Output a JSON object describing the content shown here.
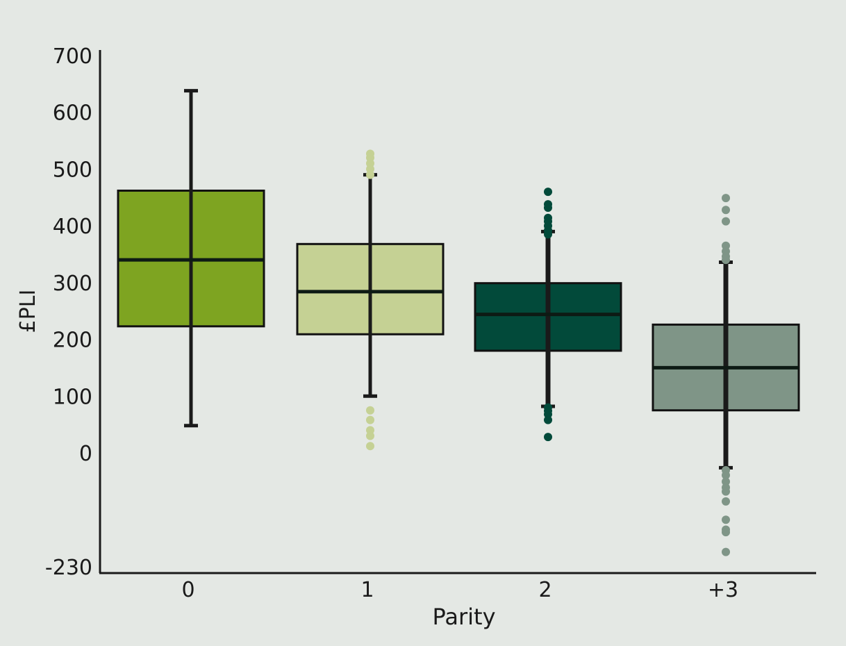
{
  "chart_data": {
    "type": "box",
    "xlabel": "Parity",
    "ylabel": "£PLI",
    "ylim": [
      -230,
      700
    ],
    "yticks": [
      -230,
      0,
      100,
      200,
      300,
      400,
      500,
      600,
      700
    ],
    "grid": false,
    "legend": "none",
    "categories": [
      "0",
      "1",
      "2",
      "+3"
    ],
    "boxes": [
      {
        "category": "0",
        "color": "#7ea421",
        "q1": 223,
        "median": 340,
        "q3": 462,
        "whisker_low": 48,
        "whisker_high": 638,
        "outliers": []
      },
      {
        "category": "1",
        "color": "#c5d194",
        "q1": 209,
        "median": 284,
        "q3": 368,
        "whisker_low": 100,
        "whisker_high": 490,
        "outliers": [
          527,
          520,
          510,
          500,
          490,
          75,
          58,
          40,
          30,
          12
        ]
      },
      {
        "category": "2",
        "color": "#024a3a",
        "q1": 180,
        "median": 244,
        "q3": 299,
        "whisker_low": 82,
        "whisker_high": 390,
        "outliers": [
          460,
          438,
          432,
          414,
          408,
          400,
          392,
          385,
          80,
          74,
          68,
          58,
          28
        ]
      },
      {
        "category": "+3",
        "color": "#7f9587",
        "q1": 75,
        "median": 150,
        "q3": 226,
        "whisker_low": -30,
        "whisker_high": 336,
        "outliers": [
          449,
          428,
          408,
          365,
          355,
          346,
          340,
          -35,
          -45,
          -58,
          -70,
          -78,
          -98,
          -135,
          -155,
          -160,
          -200
        ]
      }
    ]
  }
}
